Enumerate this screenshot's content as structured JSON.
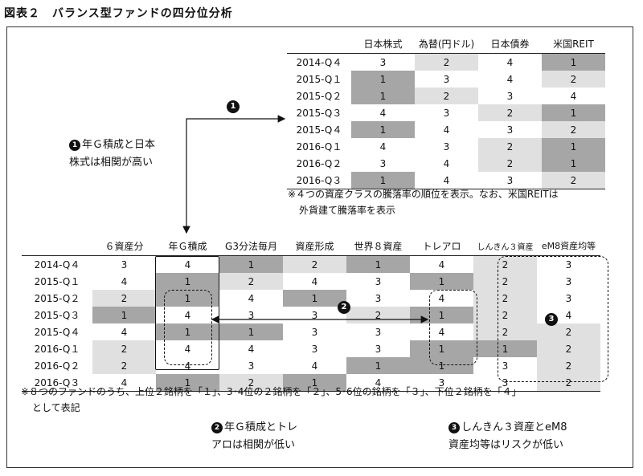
{
  "title": "図表２　バランス型ファンドの四分位分析",
  "table1": {
    "headers": [
      "日本株式",
      "為替(円ドル)",
      "日本債券",
      "米国REIT"
    ],
    "rows": [
      {
        "label": "2014-Q４",
        "values": [
          "3",
          "2",
          "4",
          "1"
        ]
      },
      {
        "label": "2015-Q１",
        "values": [
          "1",
          "3",
          "4",
          "2"
        ]
      },
      {
        "label": "2015-Q２",
        "values": [
          "1",
          "2",
          "3",
          "4"
        ]
      },
      {
        "label": "2015-Q３",
        "values": [
          "4",
          "3",
          "2",
          "1"
        ]
      },
      {
        "label": "2015-Q４",
        "values": [
          "1",
          "4",
          "3",
          "2"
        ]
      },
      {
        "label": "2016-Q１",
        "values": [
          "4",
          "3",
          "2",
          "1"
        ]
      },
      {
        "label": "2016-Q２",
        "values": [
          "3",
          "4",
          "2",
          "1"
        ]
      },
      {
        "label": "2016-Q３",
        "values": [
          "1",
          "4",
          "3",
          "2"
        ]
      }
    ],
    "note_line1": "※４つの資産クラスの騰落率の順位を表示。なお、米国REITは",
    "note_line2": "外貨建て騰落率を表示"
  },
  "table2": {
    "headers": [
      "６資産分",
      "年Ｇ積成",
      "G3分法毎月",
      "資産形成",
      "世界８資産",
      "トレアロ",
      "しんきん３資産",
      "eM8資産均等"
    ],
    "rows": [
      {
        "label": "2014-Q４",
        "values": [
          "3",
          "4",
          "1",
          "2",
          "1",
          "4",
          "2",
          "3"
        ]
      },
      {
        "label": "2015-Q１",
        "values": [
          "4",
          "1",
          "2",
          "4",
          "3",
          "1",
          "2",
          "3"
        ]
      },
      {
        "label": "2015-Q２",
        "values": [
          "2",
          "1",
          "4",
          "1",
          "3",
          "4",
          "2",
          "3"
        ]
      },
      {
        "label": "2015-Q３",
        "values": [
          "1",
          "4",
          "3",
          "3",
          "2",
          "1",
          "2",
          "4"
        ]
      },
      {
        "label": "2015-Q４",
        "values": [
          "4",
          "1",
          "1",
          "3",
          "3",
          "4",
          "2",
          "2"
        ]
      },
      {
        "label": "2016-Q１",
        "values": [
          "2",
          "4",
          "4",
          "3",
          "3",
          "1",
          "1",
          "2"
        ]
      },
      {
        "label": "2016-Q２",
        "values": [
          "2",
          "4",
          "3",
          "4",
          "1",
          "1",
          "3",
          "2"
        ]
      },
      {
        "label": "2016-Q３",
        "values": [
          "4",
          "1",
          "2",
          "1",
          "4",
          "3",
          "3",
          "2"
        ]
      }
    ],
    "note_line1": "※８つのファンドのうち、上位２銘柄を「１」、3･4位の２銘柄を「２」、5･6位の銘柄を「３」、下位２銘柄を「４」",
    "note_line2": "として表記"
  },
  "callouts": {
    "c1_num": "1",
    "c1_line1": "年Ｇ積成と日本",
    "c1_line2": "株式は相関が高い",
    "c2_num": "2",
    "c2_line1": "年Ｇ積成とトレ",
    "c2_line2": "アロは相関が低い",
    "c3_num": "3",
    "c3_line1": "しんきん３資産とeM8",
    "c3_line2": "資産均等はリスクが低い"
  },
  "colors": {
    "rank1": "#a6a6a6",
    "rank2": "#e0e0e0"
  }
}
